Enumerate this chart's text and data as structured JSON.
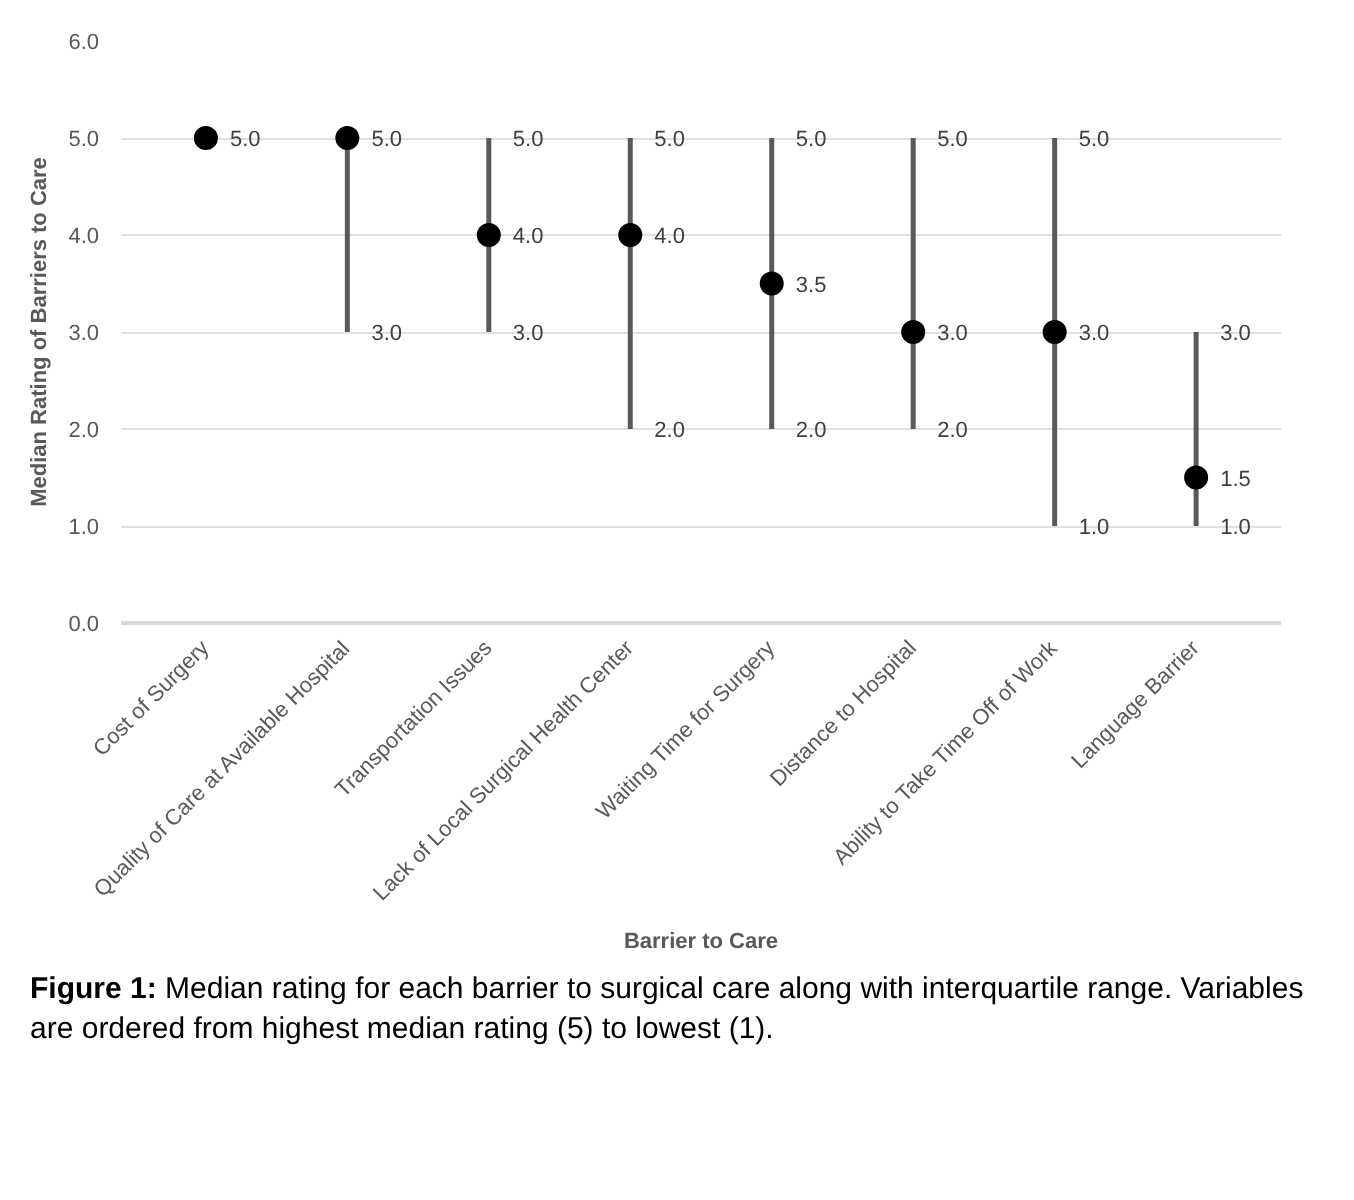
{
  "chart_data": {
    "type": "scatter",
    "xlabel": "Barrier to Care",
    "ylabel": "Median Rating of Barriers to Care",
    "categories": [
      "Cost of Surgery",
      "Quality of Care at Available Hospital",
      "Transportation Issues",
      "Lack of Local Surgical Health Center",
      "Waiting Time for Surgery",
      "Distance to Hospital",
      "Ability to Take Time Off of Work",
      "Language Barrier"
    ],
    "series": [
      {
        "color": "#000000",
        "values": [
          5.0,
          5.0,
          4.0,
          4.0,
          3.5,
          3.0,
          3.0,
          1.5
        ],
        "errors": [
          [
            5.0,
            5.0
          ],
          [
            3.0,
            5.0
          ],
          [
            3.0,
            5.0
          ],
          [
            2.0,
            5.0
          ],
          [
            2.0,
            5.0
          ],
          [
            2.0,
            5.0
          ],
          [
            1.0,
            5.0
          ],
          [
            1.0,
            3.0
          ]
        ],
        "value_labels": [
          "5.0",
          "5.0",
          "4.0",
          "4.0",
          "3.5",
          "3.0",
          "3.0",
          "1.5"
        ]
      }
    ],
    "ylim": [
      0,
      6
    ],
    "yticks": [
      {
        "value": 0,
        "label": "0.0"
      },
      {
        "value": 1,
        "label": "1.0"
      },
      {
        "value": 2,
        "label": "2.0"
      },
      {
        "value": 3,
        "label": "3.0"
      },
      {
        "value": 4,
        "label": "4.0"
      },
      {
        "value": 5,
        "label": "5.0"
      },
      {
        "value": 6,
        "label": "6.0"
      }
    ],
    "grid": "y",
    "marker": "circle",
    "annotations": [
      {
        "text": "3.0",
        "x": "Quality of Care at Available Hospital",
        "y": 3.0
      },
      {
        "text": "5.0",
        "x": "Transportation Issues",
        "y": 5.0
      },
      {
        "text": "3.0",
        "x": "Transportation Issues",
        "y": 3.0
      },
      {
        "text": "5.0",
        "x": "Lack of Local Surgical Health Center",
        "y": 5.0
      },
      {
        "text": "2.0",
        "x": "Lack of Local Surgical Health Center",
        "y": 2.0
      },
      {
        "text": "5.0",
        "x": "Waiting Time for Surgery",
        "y": 5.0
      },
      {
        "text": "2.0",
        "x": "Waiting Time for Surgery",
        "y": 2.0
      },
      {
        "text": "5.0",
        "x": "Distance to Hospital",
        "y": 5.0
      },
      {
        "text": "2.0",
        "x": "Distance to Hospital",
        "y": 2.0
      },
      {
        "text": "5.0",
        "x": "Ability to Take Time Off of Work",
        "y": 5.0
      },
      {
        "text": "1.0",
        "x": "Ability to Take Time Off of Work",
        "y": 1.0
      },
      {
        "text": "3.0",
        "x": "Language Barrier",
        "y": 3.0
      },
      {
        "text": "1.0",
        "x": "Language Barrier",
        "y": 1.0
      },
      "Figure 1: Median rating for each barrier to surgical care along with interquartile range. Variables are ordered from highest median rating (5) to lowest (1)."
    ]
  }
}
